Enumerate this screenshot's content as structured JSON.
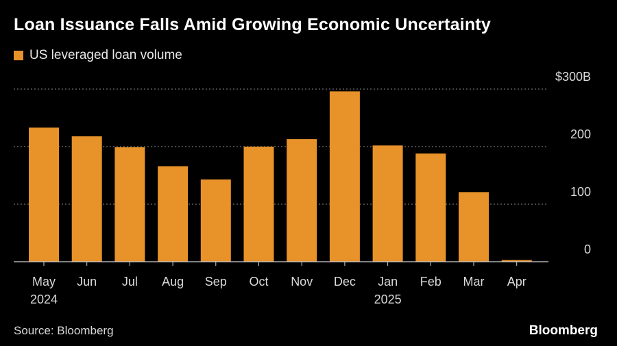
{
  "title": "Loan Issuance Falls Amid Growing Economic Uncertainty",
  "legend": {
    "label": "US leveraged loan volume"
  },
  "source": "Source: Bloomberg",
  "brand": "Bloomberg",
  "colors": {
    "background": "#000000",
    "bar": "#e8922a",
    "text": "#ffffff",
    "muted": "#d9d9d9",
    "grid": "#8c8c8c"
  },
  "chart_data": {
    "type": "bar",
    "categories": [
      "May",
      "Jun",
      "Jul",
      "Aug",
      "Sep",
      "Oct",
      "Nov",
      "Dec",
      "Jan",
      "Feb",
      "Mar",
      "Apr"
    ],
    "year_labels": [
      "2024",
      "",
      "",
      "",
      "",
      "",
      "",
      "",
      "2025",
      "",
      "",
      ""
    ],
    "series": [
      {
        "name": "US leveraged loan volume",
        "values": [
          233,
          218,
          199,
          166,
          143,
          200,
          213,
          296,
          202,
          188,
          121,
          3
        ]
      }
    ],
    "ylim": [
      0,
      300
    ],
    "yticks": [
      0,
      100,
      200,
      300
    ],
    "ytick_labels": [
      "0",
      "100",
      "200",
      "$300B"
    ],
    "grid": true,
    "legend": "top-left"
  }
}
